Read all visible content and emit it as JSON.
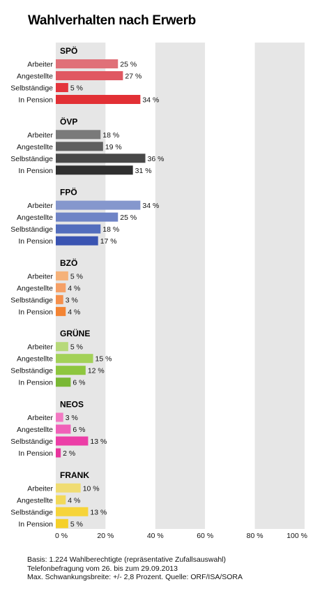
{
  "title": "Wahlverhalten nach Erwerb",
  "footer": {
    "line1": "Basis: 1.224 Wahlberechtigte (repräsentative Zufallsauswahl)",
    "line2": "Telefonbefragung vom 26. bis zum 29.09.2013",
    "line3": "Max. Schwankungsbreite: +/- 2,8 Prozent. Quelle: ORF/ISA/SORA"
  },
  "chart_data": {
    "type": "bar",
    "orientation": "horizontal",
    "title": "Wahlverhalten nach Erwerb",
    "xlim": [
      0,
      100
    ],
    "x_ticks": [
      "0 %",
      "20 %",
      "40 %",
      "60 %",
      "80 %",
      "100 %"
    ],
    "value_suffix": " %",
    "categories": [
      "Arbeiter",
      "Angestellte",
      "Selbständige",
      "In Pension"
    ],
    "series": [
      {
        "name": "SPÖ",
        "values": [
          25,
          27,
          5,
          34
        ],
        "colors": [
          "#e07078",
          "#e05862",
          "#e4353d",
          "#e23035"
        ]
      },
      {
        "name": "ÖVP",
        "values": [
          18,
          19,
          36,
          31
        ],
        "colors": [
          "#7a7a7a",
          "#5f5f5f",
          "#484848",
          "#2f2f2f"
        ]
      },
      {
        "name": "FPÖ",
        "values": [
          34,
          25,
          18,
          17
        ],
        "colors": [
          "#8597cd",
          "#6f84c6",
          "#526dbd",
          "#3a54b2"
        ]
      },
      {
        "name": "BZÖ",
        "values": [
          5,
          4,
          3,
          4
        ],
        "colors": [
          "#f5b27a",
          "#f5a066",
          "#f5904c",
          "#f38433"
        ]
      },
      {
        "name": "GRÜNE",
        "values": [
          5,
          15,
          12,
          6
        ],
        "colors": [
          "#b7d97a",
          "#a3d158",
          "#8ec63f",
          "#7ab835"
        ]
      },
      {
        "name": "NEOS",
        "values": [
          3,
          6,
          13,
          2
        ],
        "colors": [
          "#f27ac3",
          "#f060b8",
          "#ec3ea7",
          "#e8359e"
        ]
      },
      {
        "name": "FRANK",
        "values": [
          10,
          4,
          13,
          5
        ],
        "colors": [
          "#f0dc72",
          "#f2d95a",
          "#f6d43a",
          "#f5d02a"
        ]
      }
    ]
  }
}
